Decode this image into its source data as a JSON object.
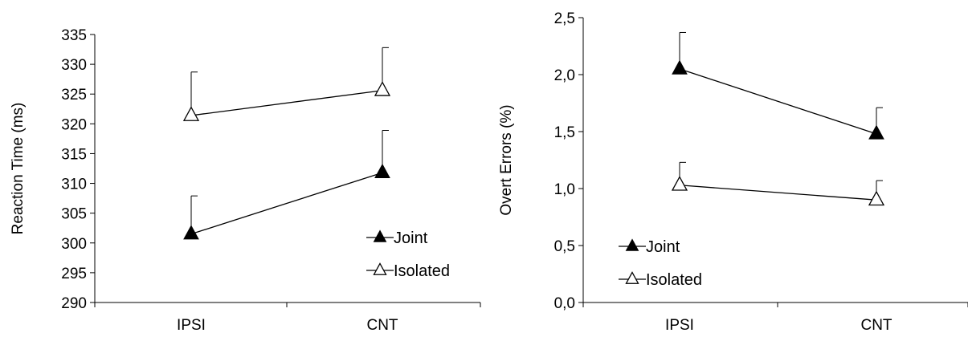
{
  "chart_data": [
    {
      "type": "line",
      "categories": [
        "IPSI",
        "CNT"
      ],
      "ylabel": "Reaction Time (ms)",
      "ylim": [
        290,
        335
      ],
      "yticks": [
        "290",
        "295",
        "300",
        "305",
        "310",
        "315",
        "320",
        "325",
        "330",
        "335"
      ],
      "series": [
        {
          "name": "Joint",
          "marker": "filled-triangle",
          "values": [
            301.5,
            311.8
          ],
          "error": [
            6.4,
            7.1
          ]
        },
        {
          "name": "Isolated",
          "marker": "open-triangle",
          "values": [
            321.4,
            325.6
          ],
          "error": [
            7.3,
            7.2
          ]
        }
      ],
      "legend_position": "bottom-right"
    },
    {
      "type": "line",
      "categories": [
        "IPSI",
        "CNT"
      ],
      "ylabel": "Overt Errors (%)",
      "ylim": [
        0,
        2.5
      ],
      "yticks": [
        "0,0",
        "0,5",
        "1,0",
        "1,5",
        "2,0",
        "2,5"
      ],
      "series": [
        {
          "name": "Joint",
          "marker": "filled-triangle",
          "values": [
            2.05,
            1.48
          ],
          "error": [
            0.32,
            0.23
          ]
        },
        {
          "name": "Isolated",
          "marker": "open-triangle",
          "values": [
            1.03,
            0.9
          ],
          "error": [
            0.2,
            0.17
          ]
        }
      ],
      "legend_position": "bottom-left"
    }
  ]
}
